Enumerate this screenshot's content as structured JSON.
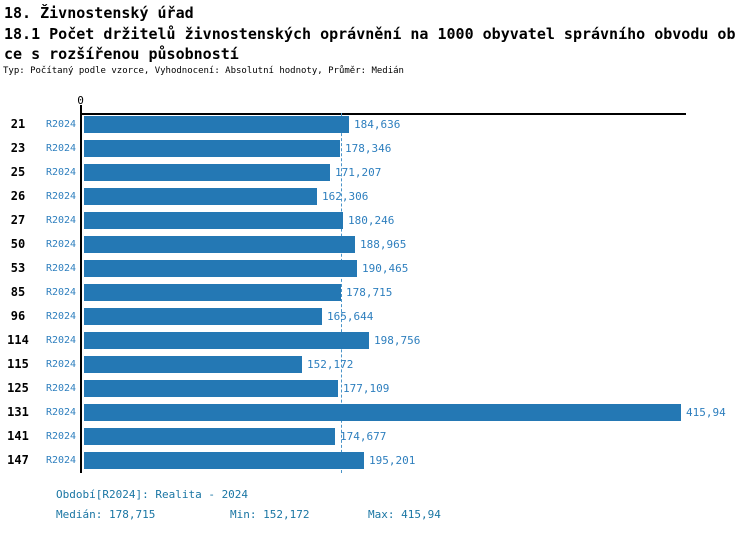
{
  "header": {
    "line1": "18. Živnostenský úřad",
    "line2": "18.1 Počet držitelů živnostenských oprávnění na 1000 obyvatel správního obvodu ob",
    "line3": "ce s rozšířenou působností",
    "meta": "Typ: Počítaný podle vzorce, Vyhodnocení: Absolutní hodnoty, Průměr: Medián"
  },
  "chart_data": {
    "type": "bar",
    "orientation": "horizontal",
    "title": "18.1 Počet držitelů živnostenských oprávnění na 1000 obyvatel správního obvodu obce s rozšířenou působností",
    "xlabel": "",
    "ylabel": "",
    "axis_zero_label": "0",
    "xlim": [
      0,
      415.94
    ],
    "grid": false,
    "legend_position": "bottom",
    "series_label": "R2024",
    "categories": [
      "21",
      "23",
      "25",
      "26",
      "27",
      "50",
      "53",
      "85",
      "96",
      "114",
      "115",
      "125",
      "131",
      "141",
      "147"
    ],
    "values": [
      184.636,
      178.346,
      171.207,
      162.306,
      180.246,
      188.965,
      190.465,
      178.715,
      165.644,
      198.756,
      152.172,
      177.109,
      415.94,
      174.677,
      195.201
    ],
    "value_labels": [
      "184,636",
      "178,346",
      "171,207",
      "162,306",
      "180,246",
      "188,965",
      "190,465",
      "178,715",
      "165,644",
      "198,756",
      "152,172",
      "177,109",
      "415,94",
      "174,677",
      "195,201"
    ],
    "median_value": 178.715,
    "colors": {
      "bar": "#2478b4",
      "label_text": "#2e7fbe",
      "footer_text": "#1a76a4",
      "median_line": "#4a94c8",
      "axis": "#000000"
    }
  },
  "footer": {
    "period": "Období[R2024]: Realita - 2024",
    "median": "Medián: 178,715",
    "min": "Min: 152,172",
    "max": "Max: 415,94"
  }
}
